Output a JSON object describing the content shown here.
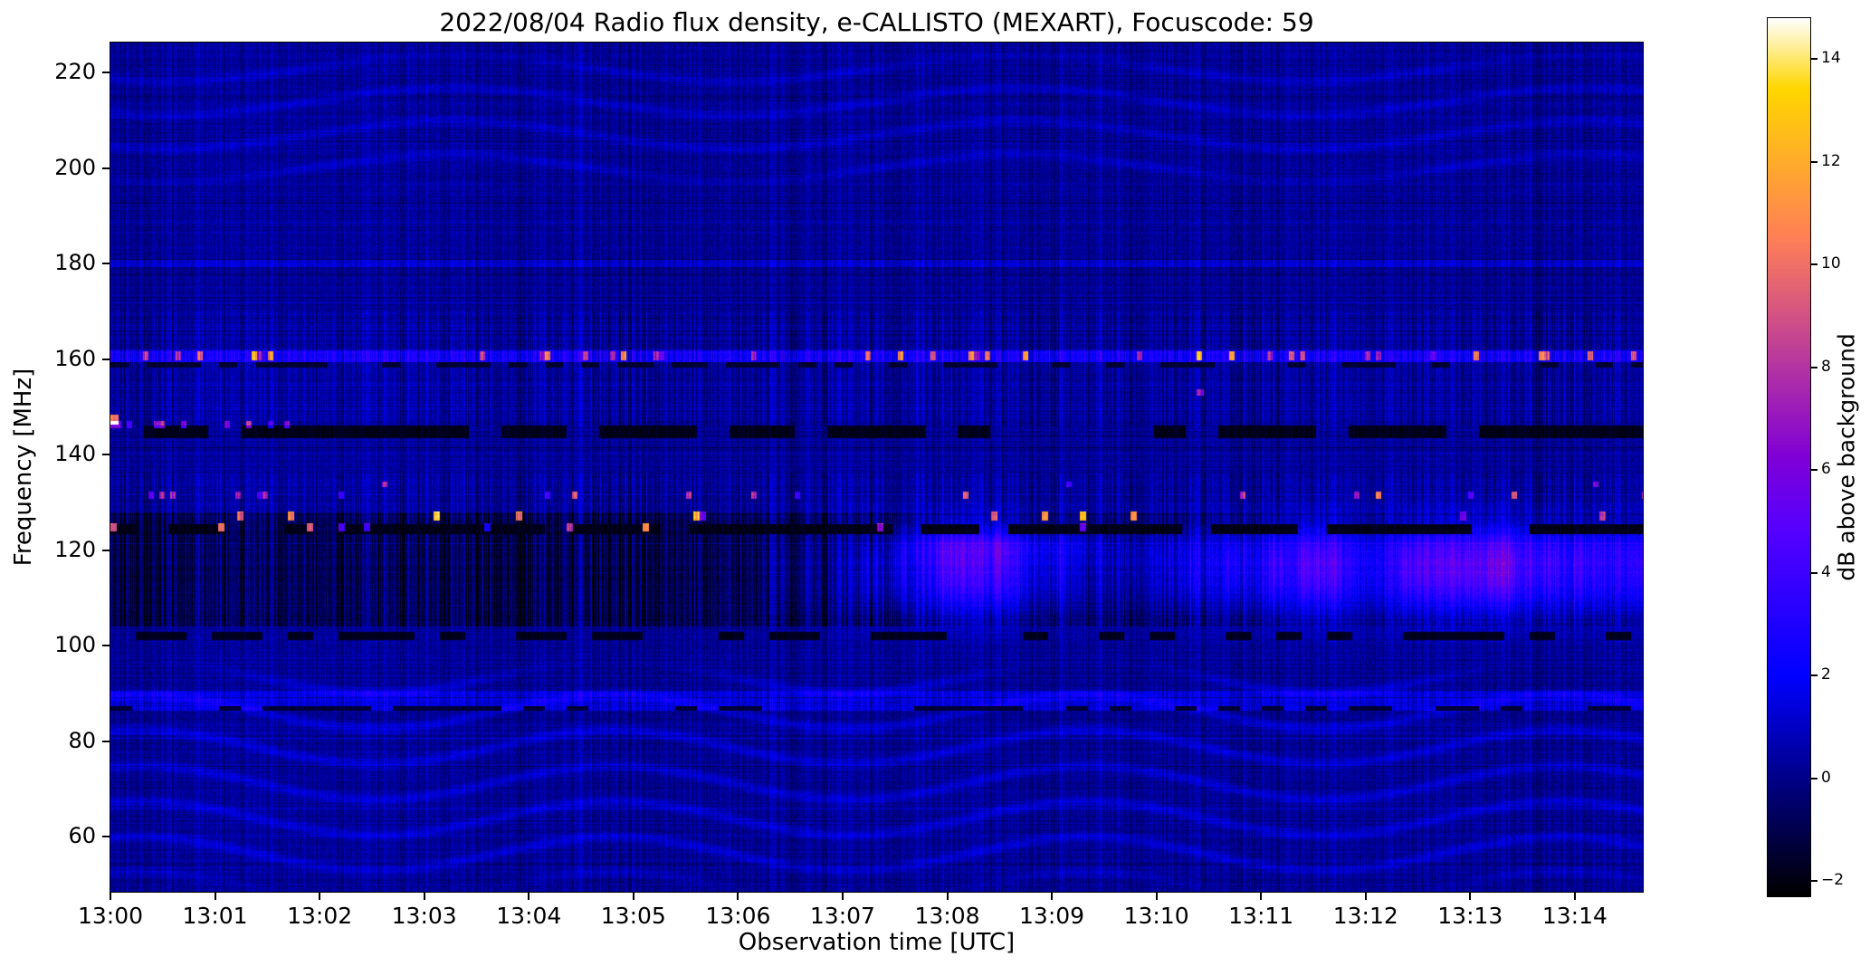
{
  "chart_data": {
    "type": "heatmap",
    "title": "2022/08/04  Radio flux density, e-CALLISTO (MEXART), Focuscode: 59",
    "xlabel": "Observation time [UTC]",
    "ylabel": "Frequency [MHz]",
    "x_ticks": [
      "13:00",
      "13:01",
      "13:02",
      "13:03",
      "13:04",
      "13:05",
      "13:06",
      "13:07",
      "13:08",
      "13:09",
      "13:10",
      "13:11",
      "13:12",
      "13:13",
      "13:14"
    ],
    "x_range_minutes": [
      0,
      14.65
    ],
    "y_ticks": [
      220,
      200,
      180,
      160,
      140,
      120,
      100,
      80,
      60
    ],
    "freq_range_mhz": [
      48.5,
      226.3
    ],
    "colorbar": {
      "label": "dB above background",
      "tick_labels": [
        "14",
        "12",
        "10",
        "8",
        "6",
        "4",
        "2",
        "0",
        "−2"
      ],
      "tick_values": [
        14,
        12,
        10,
        8,
        6,
        4,
        2,
        0,
        -2
      ],
      "vmin": -2.3,
      "vmax": 14.8,
      "colormap": "gnuplot2"
    },
    "background": {
      "base_db": 0.2,
      "stripe_db": 0.6,
      "pixel_db": 0.55,
      "row_db": 0.3
    },
    "features": [
      {
        "name": "low-frequency-ripples",
        "type": "ripple",
        "fmin": 48.5,
        "fmax": 97,
        "amp": 1.0,
        "kx": 0.012,
        "ky": 0.16,
        "warp": 3.0,
        "phase": 1.2
      },
      {
        "name": "high-frequency-ripples",
        "type": "ripple",
        "fmin": 194,
        "fmax": 226,
        "amp": 0.75,
        "kx": 0.01,
        "ky": 0.17,
        "warp": 2.6,
        "phase": 4.1
      },
      {
        "name": "band-88mhz",
        "type": "band",
        "fmin": 86.5,
        "fmax": 90.5,
        "db": 1.2,
        "stripe": 0.35
      },
      {
        "name": "dark-dashes-87mhz",
        "type": "dash_line",
        "freq": 86.9,
        "hw": 0.55,
        "db": -1.4,
        "prob": 0.45,
        "block": 24
      },
      {
        "name": "dark-dashes-102mhz",
        "type": "dash_line",
        "freq": 102.0,
        "hw": 0.85,
        "db": -1.8,
        "prob": 0.55,
        "block": 28
      },
      {
        "name": "active-band-stripes",
        "type": "band",
        "fmin": 104,
        "fmax": 128,
        "db": -1.2,
        "stripe": 1.1,
        "env": [
          [
            0,
            0.95
          ],
          [
            0.28,
            1.0
          ],
          [
            0.42,
            0.7
          ],
          [
            0.5,
            1.0
          ],
          [
            0.56,
            0.35
          ],
          [
            0.62,
            0.6
          ],
          [
            0.7,
            0.75
          ],
          [
            0.78,
            0.4
          ],
          [
            0.86,
            0.5
          ],
          [
            0.93,
            0.35
          ],
          [
            1,
            0.5
          ]
        ]
      },
      {
        "name": "stripe-texture-146-170",
        "type": "band",
        "fmin": 146,
        "fmax": 170,
        "db": 0.15,
        "stripe": 0.45
      },
      {
        "name": "stripe-texture-128-136",
        "type": "band",
        "fmin": 128,
        "fmax": 136,
        "db": 0.1,
        "stripe": 0.5
      },
      {
        "name": "drifting-emission-glow",
        "type": "glow",
        "fc": 116,
        "fw": 9,
        "db": 5.0,
        "env": [
          [
            0,
            0
          ],
          [
            0.42,
            0
          ],
          [
            0.47,
            0.45
          ],
          [
            0.52,
            0.85
          ],
          [
            0.57,
            1.0
          ],
          [
            0.62,
            0.4
          ],
          [
            0.66,
            0.25
          ],
          [
            0.7,
            0.5
          ],
          [
            0.74,
            0.6
          ],
          [
            0.78,
            0.85
          ],
          [
            0.82,
            0.7
          ],
          [
            0.86,
            0.85
          ],
          [
            0.9,
            1.0
          ],
          [
            0.94,
            0.8
          ],
          [
            1,
            0.65
          ]
        ]
      },
      {
        "name": "glow-121mhz-mid",
        "type": "glow",
        "fc": 121,
        "fw": 3,
        "db": 2.0,
        "env": [
          [
            0,
            0
          ],
          [
            0.5,
            0
          ],
          [
            0.55,
            0.9
          ],
          [
            0.6,
            0.65
          ],
          [
            0.65,
            0.2
          ],
          [
            1,
            0.25
          ]
        ]
      },
      {
        "name": "dark-patch-1307",
        "type": "glow",
        "fc": 116,
        "fw": 8,
        "db": -1.6,
        "env": [
          [
            0,
            0
          ],
          [
            0.44,
            0
          ],
          [
            0.47,
            0.8
          ],
          [
            0.5,
            1.0
          ],
          [
            0.53,
            0.55
          ],
          [
            0.56,
            0
          ],
          [
            1,
            0
          ]
        ]
      },
      {
        "name": "dark-line-125mhz",
        "type": "dash_line",
        "freq": 124.4,
        "hw": 1.1,
        "db": -1.9,
        "prob": 0.8,
        "block": 32
      },
      {
        "name": "dark-line-145mhz",
        "type": "dash_line",
        "freq": 144.8,
        "hw": 1.3,
        "db": -1.85,
        "prob": 0.78,
        "block": 36
      },
      {
        "name": "dark-dashes-159mhz",
        "type": "dash_line",
        "freq": 158.8,
        "hw": 0.55,
        "db": -1.5,
        "prob": 0.5,
        "block": 20
      },
      {
        "name": "band-160mhz",
        "type": "band",
        "fmin": 159.4,
        "fmax": 161.9,
        "db": 2.1,
        "stripe": 0.5
      },
      {
        "name": "band-180mhz",
        "type": "band",
        "fmin": 179.3,
        "fmax": 180.8,
        "db": 1.1,
        "stripe": 0.25
      },
      {
        "name": "speckles-160mhz",
        "type": "speckles",
        "freq": 160.7,
        "hw": 1.0,
        "prob": 0.13,
        "vmin": 3,
        "vmax": 10,
        "block": 6
      },
      {
        "name": "speckles-146mhz-left",
        "type": "speckles",
        "freq": 146.3,
        "hw": 0.8,
        "prob": 0.3,
        "vmin": 3,
        "vmax": 9,
        "block": 6,
        "xmax": 0.12
      },
      {
        "name": "bright-spot-147mhz-left-edge",
        "type": "speckles",
        "freq": 147.3,
        "hw": 1.0,
        "prob": 1.0,
        "vmin": 9,
        "vmax": 13,
        "block": 4,
        "xmax": 0.005
      },
      {
        "name": "speckles-131mhz",
        "type": "speckles",
        "freq": 131.5,
        "hw": 0.8,
        "prob": 0.08,
        "vmin": 3,
        "vmax": 10,
        "block": 6
      },
      {
        "name": "speckles-127mhz",
        "type": "speckles",
        "freq": 127.2,
        "hw": 0.9,
        "prob": 0.05,
        "vmin": 4,
        "vmax": 14,
        "block": 7
      },
      {
        "name": "speckles-125mhz",
        "type": "speckles",
        "freq": 124.8,
        "hw": 0.9,
        "prob": 0.05,
        "vmin": 4,
        "vmax": 14,
        "block": 7
      },
      {
        "name": "speckles-120mhz",
        "type": "speckles",
        "freq": 120.3,
        "hw": 0.8,
        "prob": 0.03,
        "vmin": 5,
        "vmax": 13,
        "block": 8,
        "xmin": 0.5
      },
      {
        "name": "speckles-153mhz",
        "type": "speckles",
        "freq": 153.0,
        "hw": 0.7,
        "prob": 0.012,
        "vmin": 4,
        "vmax": 8,
        "block": 8,
        "xmin": 0.55
      },
      {
        "name": "speckles-134mhz",
        "type": "speckles",
        "freq": 133.8,
        "hw": 0.6,
        "prob": 0.02,
        "vmin": 3,
        "vmax": 7,
        "block": 6
      }
    ]
  }
}
